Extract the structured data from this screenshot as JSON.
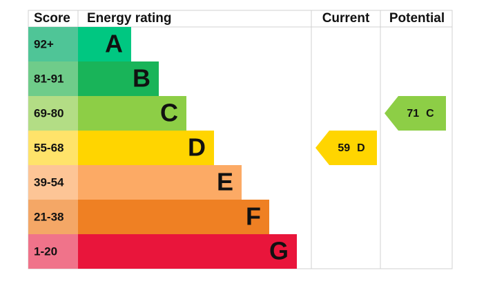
{
  "header": {
    "score": "Score",
    "rating": "Energy rating",
    "current": "Current",
    "potential": "Potential"
  },
  "bands": [
    {
      "score": "92+",
      "letter": "A",
      "color": "#00c781",
      "score_color": "#4fc597"
    },
    {
      "score": "81-91",
      "letter": "B",
      "color": "#19b459",
      "score_color": "#6fcc8a"
    },
    {
      "score": "69-80",
      "letter": "C",
      "color": "#8dce46",
      "score_color": "#b3dd85"
    },
    {
      "score": "55-68",
      "letter": "D",
      "color": "#ffd500",
      "score_color": "#ffe36a"
    },
    {
      "score": "39-54",
      "letter": "E",
      "color": "#fcaa65",
      "score_color": "#fdc596"
    },
    {
      "score": "21-38",
      "letter": "F",
      "color": "#ef8023",
      "score_color": "#f4a766"
    },
    {
      "score": "1-20",
      "letter": "G",
      "color": "#e9153b",
      "score_color": "#f0738a"
    }
  ],
  "current": {
    "value": 59,
    "letter": "D"
  },
  "potential": {
    "value": 71,
    "letter": "C"
  }
}
